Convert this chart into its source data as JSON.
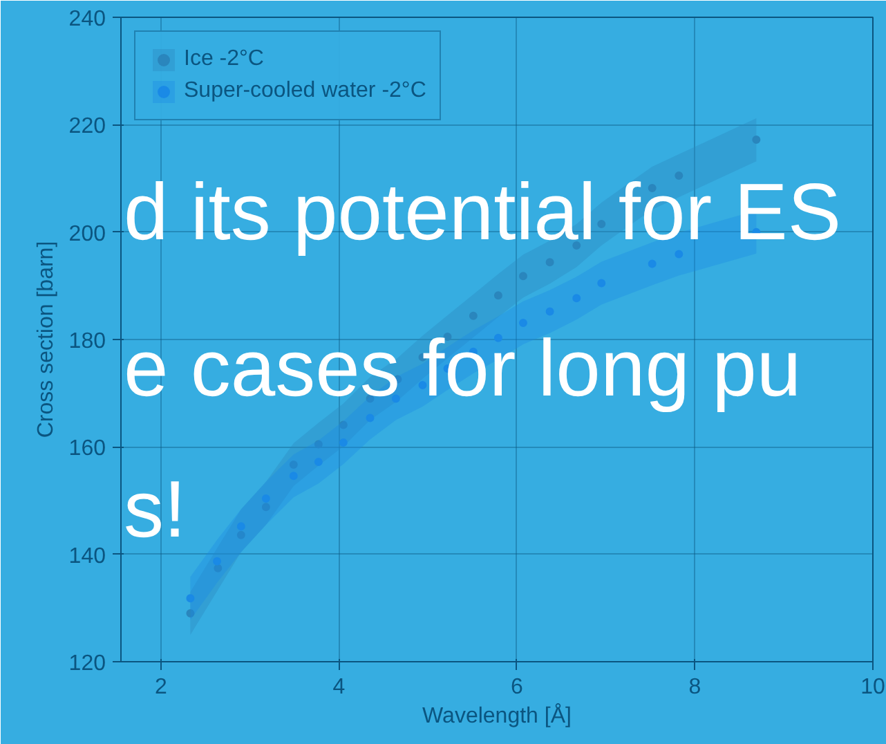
{
  "chart_data": {
    "type": "scatter",
    "xlabel": "Wavelength [Å]",
    "ylabel": "Cross section [barn]",
    "xlim": [
      1.55,
      10
    ],
    "ylim": [
      120,
      240
    ],
    "xticks": [
      2,
      4,
      6,
      8,
      10
    ],
    "yticks": [
      120,
      140,
      160,
      180,
      200,
      220,
      240
    ],
    "grid": true,
    "legend": "top left",
    "marker": "circle",
    "series": [
      {
        "name": "Ice -2°C",
        "color": "#2a86bd",
        "x": [
          2.33,
          2.64,
          2.9,
          3.18,
          3.49,
          3.77,
          4.05,
          4.35,
          4.66,
          4.94,
          5.22,
          5.51,
          5.79,
          6.07,
          6.37,
          6.67,
          6.95,
          7.52,
          7.82,
          8.69
        ],
        "values": [
          129,
          137.4,
          143.6,
          148.8,
          156.7,
          160.5,
          164.1,
          169,
          172.6,
          176.7,
          180.5,
          184.4,
          188.2,
          191.8,
          194.4,
          197.5,
          201.5,
          208.2,
          210.5,
          217.2
        ],
        "lower": [
          125,
          133.4,
          140.4,
          145.5,
          152.7,
          156.5,
          160.1,
          165,
          168.6,
          172.7,
          176.5,
          180.4,
          184.2,
          187.8,
          190.4,
          193.5,
          197.5,
          204.2,
          206.5,
          213.2
        ],
        "upper": [
          133,
          141.4,
          148.4,
          153.5,
          160.7,
          164.5,
          168.1,
          173,
          176.6,
          180.7,
          184.5,
          188.4,
          192.2,
          195.8,
          198.4,
          201.5,
          205.5,
          212.2,
          214.5,
          221.2
        ]
      },
      {
        "name": "Super-cooled water -2°C",
        "color": "#1a8ae6",
        "x": [
          2.33,
          2.63,
          2.9,
          3.18,
          3.49,
          3.77,
          4.05,
          4.35,
          4.64,
          4.94,
          5.22,
          5.51,
          5.79,
          6.07,
          6.37,
          6.67,
          6.95,
          7.52,
          7.82,
          8.69
        ],
        "values": [
          131.8,
          138.7,
          145.2,
          150.4,
          154.6,
          157.2,
          160.8,
          165.4,
          169,
          171.5,
          174.6,
          177.7,
          180.3,
          183.1,
          185.2,
          187.7,
          190.5,
          194.1,
          195.9,
          200
        ],
        "lower": [
          127.8,
          134.7,
          140.4,
          145.5,
          150.6,
          153.2,
          156.8,
          161.4,
          165,
          167.5,
          170.6,
          173.7,
          176.3,
          179.1,
          181.2,
          183.7,
          186.5,
          190.1,
          191.9,
          196
        ],
        "upper": [
          135.8,
          142.7,
          148.4,
          153.5,
          158.6,
          161.2,
          164.8,
          169.4,
          173,
          175.5,
          178.6,
          181.7,
          184.3,
          187.1,
          189.2,
          191.7,
          194.5,
          198.1,
          199.9,
          204
        ]
      }
    ],
    "annotations": [
      "d its potential for ES",
      "e cases for long pu",
      "s!"
    ]
  }
}
